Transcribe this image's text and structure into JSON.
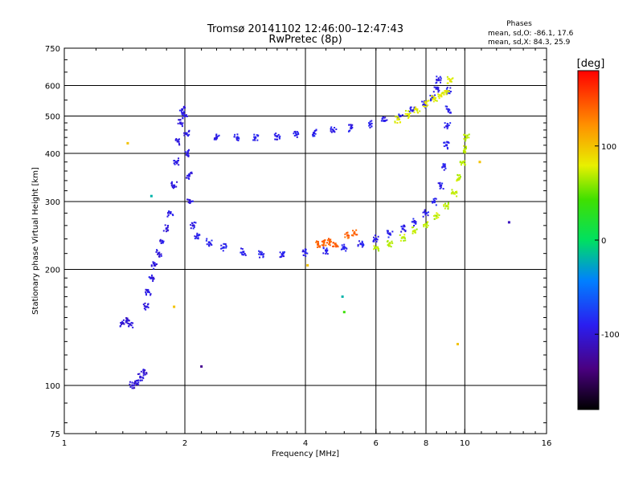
{
  "chart_data": {
    "type": "scatter",
    "title": "Tromsø 20141102 12:46:00–12:47:43",
    "subtitle": "RwPretec (8p)",
    "xlabel": "Frequency [MHz]",
    "ylabel": "Stationary phase Virtual Height [km]",
    "x_scale": "log",
    "y_scale": "log",
    "xlim": [
      1,
      16
    ],
    "ylim": [
      75,
      750
    ],
    "x_ticks": [
      "1",
      "2",
      "4",
      "6",
      "8",
      "10",
      "16"
    ],
    "y_ticks": [
      "75",
      "100",
      "200",
      "300",
      "400",
      "500",
      "600",
      "750"
    ],
    "grid": true,
    "phase_stats": {
      "heading": "Phases",
      "line_o": "mean, sd,O: -86.1, 17.6",
      "line_x": "mean, sd,X:  84.3, 25.9"
    },
    "colorbar": {
      "label": "[deg]",
      "range": [
        -180,
        180
      ],
      "ticks": [
        "100",
        "0",
        "-100"
      ],
      "colormap": "rainbow: black → purple → blue → cyan → green → yellow → orange → red"
    },
    "colors": {
      "o_mode": "#2a3cf0",
      "x_mode": "#d8e820",
      "frame": "#000000"
    },
    "series": [
      {
        "name": "O",
        "traces": [
          {
            "phase": -100,
            "points": [
              [
                1.4,
                145
              ],
              [
                1.43,
                147
              ],
              [
                1.46,
                144
              ],
              [
                1.48,
                100
              ],
              [
                1.52,
                101
              ],
              [
                1.55,
                105
              ],
              [
                1.58,
                108
              ]
            ]
          },
          {
            "phase": -95,
            "points": [
              [
                1.6,
                160
              ],
              [
                1.62,
                175
              ],
              [
                1.65,
                190
              ],
              [
                1.68,
                205
              ],
              [
                1.72,
                220
              ],
              [
                1.76,
                235
              ],
              [
                1.8,
                255
              ],
              [
                1.84,
                280
              ],
              [
                1.88,
                330
              ],
              [
                1.9,
                380
              ],
              [
                1.92,
                430
              ],
              [
                1.95,
                480
              ],
              [
                1.97,
                520
              ],
              [
                2.0,
                500
              ],
              [
                2.02,
                450
              ],
              [
                2.03,
                400
              ],
              [
                2.05,
                350
              ],
              [
                2.06,
                300
              ],
              [
                2.1,
                260
              ]
            ]
          },
          {
            "phase": -90,
            "points": [
              [
                2.15,
                245
              ],
              [
                2.3,
                235
              ],
              [
                2.5,
                228
              ],
              [
                2.8,
                222
              ],
              [
                3.1,
                219
              ],
              [
                3.5,
                219
              ],
              [
                4.0,
                221
              ],
              [
                4.5,
                224
              ],
              [
                5.0,
                228
              ],
              [
                5.5,
                233
              ],
              [
                6.0,
                240
              ],
              [
                6.5,
                247
              ],
              [
                7.0,
                255
              ],
              [
                7.5,
                265
              ],
              [
                8.0,
                280
              ],
              [
                8.4,
                300
              ],
              [
                8.7,
                330
              ],
              [
                8.9,
                370
              ],
              [
                9.0,
                420
              ],
              [
                9.05,
                470
              ],
              [
                9.1,
                520
              ],
              [
                9.12,
                580
              ]
            ]
          },
          {
            "phase": -92,
            "points": [
              [
                2.4,
                440
              ],
              [
                2.7,
                439
              ],
              [
                3.0,
                440
              ],
              [
                3.4,
                443
              ],
              [
                3.8,
                447
              ],
              [
                4.2,
                452
              ],
              [
                4.7,
                458
              ],
              [
                5.2,
                465
              ],
              [
                5.8,
                476
              ],
              [
                6.3,
                486
              ],
              [
                6.9,
                500
              ],
              [
                7.4,
                516
              ],
              [
                7.9,
                535
              ],
              [
                8.3,
                560
              ],
              [
                8.5,
                590
              ],
              [
                8.6,
                620
              ]
            ]
          }
        ]
      },
      {
        "name": "X",
        "traces": [
          {
            "phase": 80,
            "points": [
              [
                6.8,
                490
              ],
              [
                7.2,
                505
              ],
              [
                7.6,
                520
              ],
              [
                8.0,
                540
              ],
              [
                8.4,
                555
              ],
              [
                8.7,
                565
              ],
              [
                9.0,
                580
              ],
              [
                9.2,
                620
              ]
            ]
          },
          {
            "phase": 70,
            "points": [
              [
                6.0,
                228
              ],
              [
                6.5,
                234
              ],
              [
                7.0,
                242
              ],
              [
                7.5,
                252
              ],
              [
                8.0,
                262
              ],
              [
                8.5,
                275
              ],
              [
                9.0,
                292
              ],
              [
                9.4,
                315
              ],
              [
                9.7,
                345
              ],
              [
                9.9,
                380
              ],
              [
                10.0,
                410
              ],
              [
                10.1,
                440
              ]
            ]
          },
          {
            "phase": 140,
            "points": [
              [
                4.3,
                232
              ],
              [
                4.45,
                235
              ],
              [
                4.6,
                236
              ],
              [
                4.75,
                233
              ],
              [
                5.1,
                245
              ],
              [
                5.3,
                248
              ]
            ]
          }
        ]
      }
    ],
    "annotations": [
      {
        "x": 1.44,
        "y": 425,
        "phase": 100
      },
      {
        "x": 1.65,
        "y": 310,
        "phase": -20
      },
      {
        "x": 1.88,
        "y": 160,
        "phase": 100
      },
      {
        "x": 2.2,
        "y": 112,
        "phase": -130
      },
      {
        "x": 4.05,
        "y": 205,
        "phase": 100
      },
      {
        "x": 4.95,
        "y": 170,
        "phase": -20
      },
      {
        "x": 5.0,
        "y": 155,
        "phase": 40
      },
      {
        "x": 9.6,
        "y": 128,
        "phase": 100
      },
      {
        "x": 12.9,
        "y": 265,
        "phase": -110
      },
      {
        "x": 10.9,
        "y": 380,
        "phase": 100
      }
    ]
  }
}
